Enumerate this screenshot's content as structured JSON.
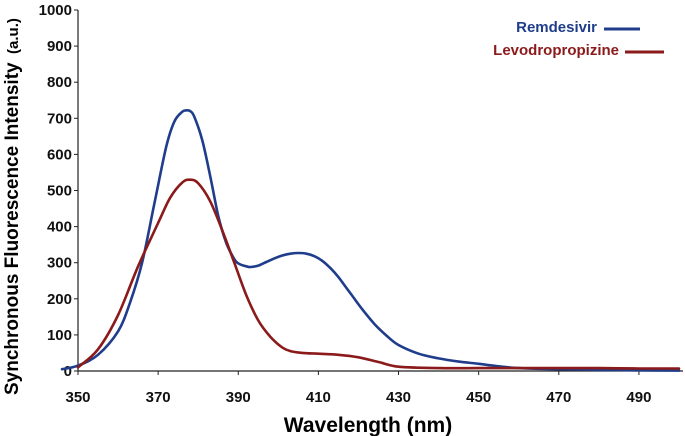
{
  "chart_data": {
    "type": "line",
    "title": "",
    "xlabel": "Wavelength (nm)",
    "ylabel": "Synchronous Fluorescence Intensity",
    "ylabel_unit": "(a.u.)",
    "xlim": [
      350,
      501
    ],
    "ylim": [
      0,
      1000
    ],
    "xticks": [
      350,
      370,
      390,
      410,
      430,
      450,
      470,
      490
    ],
    "yticks": [
      0,
      100,
      200,
      300,
      400,
      500,
      600,
      700,
      800,
      900,
      1000
    ],
    "grid": false,
    "legend_position": "top-right",
    "series": [
      {
        "name": "Remdesivir",
        "color": "#1f3d8a",
        "x": [
          346,
          350,
          355,
          360,
          363,
          366,
          369,
          372,
          374,
          376,
          377,
          378,
          379,
          381,
          383,
          385,
          387,
          389,
          390,
          391,
          392,
          393,
          395,
          397,
          399,
          401,
          403,
          405,
          407,
          409,
          411,
          413,
          415,
          418,
          421,
          424,
          427,
          430,
          435,
          440,
          445,
          450,
          455,
          460,
          470,
          480,
          490,
          500
        ],
        "y": [
          5,
          15,
          45,
          110,
          190,
          300,
          460,
          620,
          690,
          718,
          722,
          720,
          705,
          640,
          540,
          430,
          355,
          310,
          298,
          293,
          290,
          288,
          292,
          302,
          312,
          320,
          325,
          327,
          325,
          318,
          305,
          285,
          260,
          215,
          170,
          130,
          98,
          72,
          48,
          35,
          26,
          20,
          13,
          8,
          5,
          3,
          2,
          1
        ]
      },
      {
        "name": "Levodropropizine",
        "color": "#8b1a1a",
        "x": [
          350,
          355,
          360,
          365,
          370,
          373,
          376,
          378,
          380,
          383,
          386,
          389,
          392,
          395,
          398,
          401,
          403,
          406,
          410,
          415,
          420,
          425,
          430,
          440,
          450,
          460,
          470,
          480,
          490,
          500
        ],
        "y": [
          10,
          60,
          155,
          290,
          410,
          480,
          522,
          530,
          520,
          470,
          390,
          300,
          210,
          140,
          95,
          65,
          55,
          50,
          48,
          45,
          38,
          25,
          12,
          8,
          8,
          8,
          8,
          8,
          7,
          7
        ]
      }
    ]
  }
}
